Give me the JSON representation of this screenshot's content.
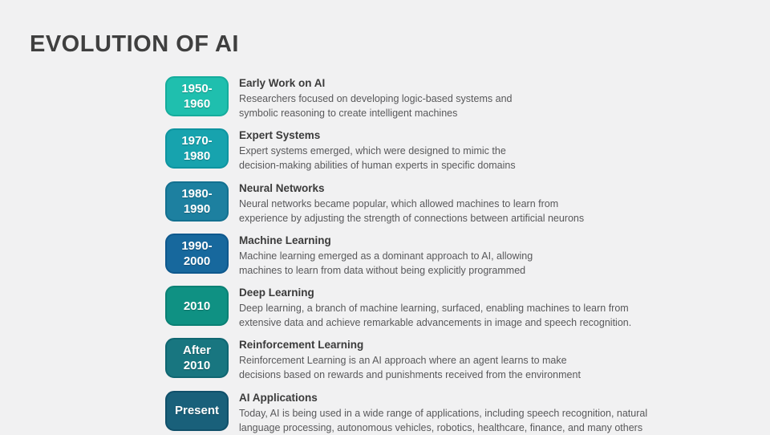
{
  "slide": {
    "title": "EVOLUTION OF AI",
    "background_color": "#F1F1F2",
    "title_color": "#3F3F3F"
  },
  "timeline": {
    "items": [
      {
        "badge": "1950-\n1960",
        "badge_color": "#1FBFAE",
        "badge_border": "#15AC9C",
        "title": "Early Work on AI",
        "description": "Researchers focused on developing logic-based systems and\nsymbolic reasoning to create intelligent machines"
      },
      {
        "badge": "1970-\n1980",
        "badge_color": "#17A3AE",
        "badge_border": "#0E94A0",
        "title": "Expert Systems",
        "description": "Expert systems emerged, which were designed to mimic the\ndecision-making abilities of human experts in specific domains"
      },
      {
        "badge": "1980-\n1990",
        "badge_color": "#1D80A0",
        "badge_border": "#137090",
        "title": "Neural Networks",
        "description": "Neural networks became popular, which allowed machines to learn from\nexperience by adjusting the strength of connections between artificial neurons"
      },
      {
        "badge": "1990-\n2000",
        "badge_color": "#17689D",
        "badge_border": "#0E588D",
        "title": "Machine Learning",
        "description": "Machine learning emerged as a dominant approach to AI, allowing\nmachines to learn from data without being explicitly programmed"
      },
      {
        "badge": "2010",
        "badge_color": "#0F9183",
        "badge_border": "#0A8074",
        "title": "Deep Learning",
        "description": "Deep learning, a branch of machine learning, surfaced, enabling machines to learn from\nextensive data and achieve remarkable advancements in image and speech recognition."
      },
      {
        "badge": "After\n2010",
        "badge_color": "#187680",
        "badge_border": "#0F6671",
        "title": "Reinforcement Learning",
        "description": "Reinforcement Learning is an AI approach where an agent learns to make\ndecisions based on rewards and punishments received from the environment"
      },
      {
        "badge": "Present",
        "badge_color": "#19607A",
        "badge_border": "#10506A",
        "title": "AI Applications",
        "description": "Today, AI is being used in a wide range of applications, including speech recognition, natural\nlanguage processing, autonomous vehicles, robotics, healthcare, finance, and many others"
      }
    ]
  }
}
